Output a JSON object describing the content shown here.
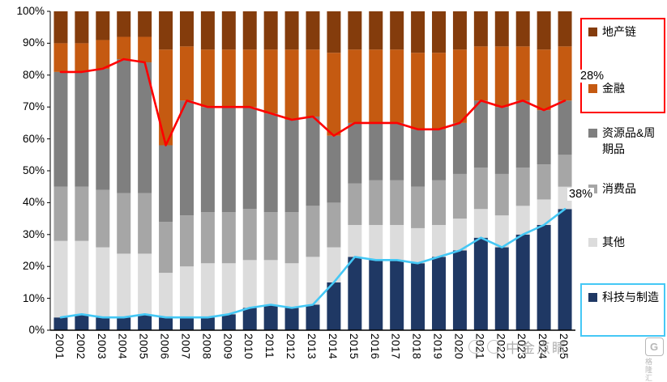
{
  "chart_data": {
    "type": "bar",
    "subtype": "stacked-percent-with-lines",
    "title": "",
    "xlabel": "",
    "ylabel": "",
    "ylim": [
      0,
      100
    ],
    "grid": false,
    "legend_position": "right",
    "categories": [
      "2001",
      "2002",
      "2003",
      "2004",
      "2005",
      "2006",
      "2007",
      "2008",
      "2009",
      "2010",
      "2011",
      "2012",
      "2013",
      "2014",
      "2015",
      "2016",
      "2017",
      "2018",
      "2019",
      "2020",
      "2021",
      "2022",
      "2023",
      "2024",
      "2025"
    ],
    "y_ticks": [
      "0%",
      "10%",
      "20%",
      "30%",
      "40%",
      "50%",
      "60%",
      "70%",
      "80%",
      "90%",
      "100%"
    ],
    "series": [
      {
        "name": "科技与制造",
        "color": "#1F3864",
        "values": [
          4,
          5,
          4,
          4,
          5,
          4,
          4,
          4,
          5,
          7,
          8,
          7,
          8,
          15,
          23,
          22,
          22,
          21,
          23,
          25,
          29,
          26,
          30,
          33,
          38
        ]
      },
      {
        "name": "其他",
        "color": "#DCDCDC",
        "values": [
          24,
          23,
          22,
          20,
          19,
          14,
          16,
          17,
          16,
          15,
          14,
          14,
          15,
          11,
          10,
          11,
          11,
          11,
          10,
          10,
          9,
          10,
          9,
          8,
          7
        ]
      },
      {
        "name": "消费品",
        "color": "#A6A6A6",
        "values": [
          17,
          17,
          18,
          19,
          19,
          16,
          16,
          16,
          16,
          16,
          15,
          16,
          16,
          14,
          13,
          14,
          14,
          13,
          14,
          14,
          13,
          13,
          12,
          11,
          10
        ]
      },
      {
        "name": "资源品&周期品",
        "color": "#7F7F7F",
        "values": [
          36,
          36,
          38,
          42,
          41,
          24,
          36,
          33,
          33,
          32,
          31,
          29,
          28,
          21,
          19,
          18,
          18,
          18,
          16,
          16,
          21,
          21,
          21,
          17,
          17
        ]
      },
      {
        "name": "金融",
        "color": "#C55A11",
        "values": [
          9,
          9,
          9,
          7,
          8,
          30,
          17,
          18,
          18,
          18,
          20,
          22,
          21,
          26,
          23,
          23,
          23,
          24,
          24,
          23,
          17,
          19,
          17,
          19,
          17
        ]
      },
      {
        "name": "地产链",
        "color": "#843C0C",
        "values": [
          10,
          10,
          9,
          8,
          8,
          12,
          11,
          12,
          12,
          12,
          12,
          12,
          12,
          13,
          12,
          12,
          12,
          13,
          13,
          12,
          11,
          11,
          11,
          12,
          11
        ]
      }
    ],
    "lines": [
      {
        "name": "red-line",
        "color": "#FF0000",
        "values": [
          81,
          81,
          82,
          85,
          84,
          58,
          72,
          70,
          70,
          70,
          68,
          66,
          67,
          61,
          65,
          65,
          65,
          63,
          63,
          65,
          72,
          70,
          72,
          69,
          72
        ]
      },
      {
        "name": "cyan-line",
        "color": "#45C8F5",
        "values": [
          4,
          5,
          4,
          4,
          5,
          4,
          4,
          4,
          5,
          7,
          8,
          7,
          8,
          15,
          23,
          22,
          22,
          21,
          23,
          25,
          29,
          26,
          30,
          33,
          38
        ]
      }
    ],
    "annotations": [
      {
        "text": "28%"
      },
      {
        "text": "38%"
      }
    ]
  },
  "legend": {
    "items": [
      {
        "label": "地产链",
        "color": "#843C0C",
        "box": "red"
      },
      {
        "label": "金融",
        "color": "#C55A11",
        "box": "red"
      },
      {
        "label": "资源品&周期品",
        "color": "#7F7F7F",
        "box": null
      },
      {
        "label": "消费品",
        "color": "#A6A6A6",
        "box": null
      },
      {
        "label": "其他",
        "color": "#DCDCDC",
        "box": null
      },
      {
        "label": "科技与制造",
        "color": "#1F3864",
        "box": "cyan"
      }
    ]
  },
  "watermark": {
    "icons": [
      "circle-icon",
      "circle-icon"
    ],
    "text": "中金点睛"
  },
  "logo": {
    "letter": "G",
    "text": "格隆汇"
  }
}
